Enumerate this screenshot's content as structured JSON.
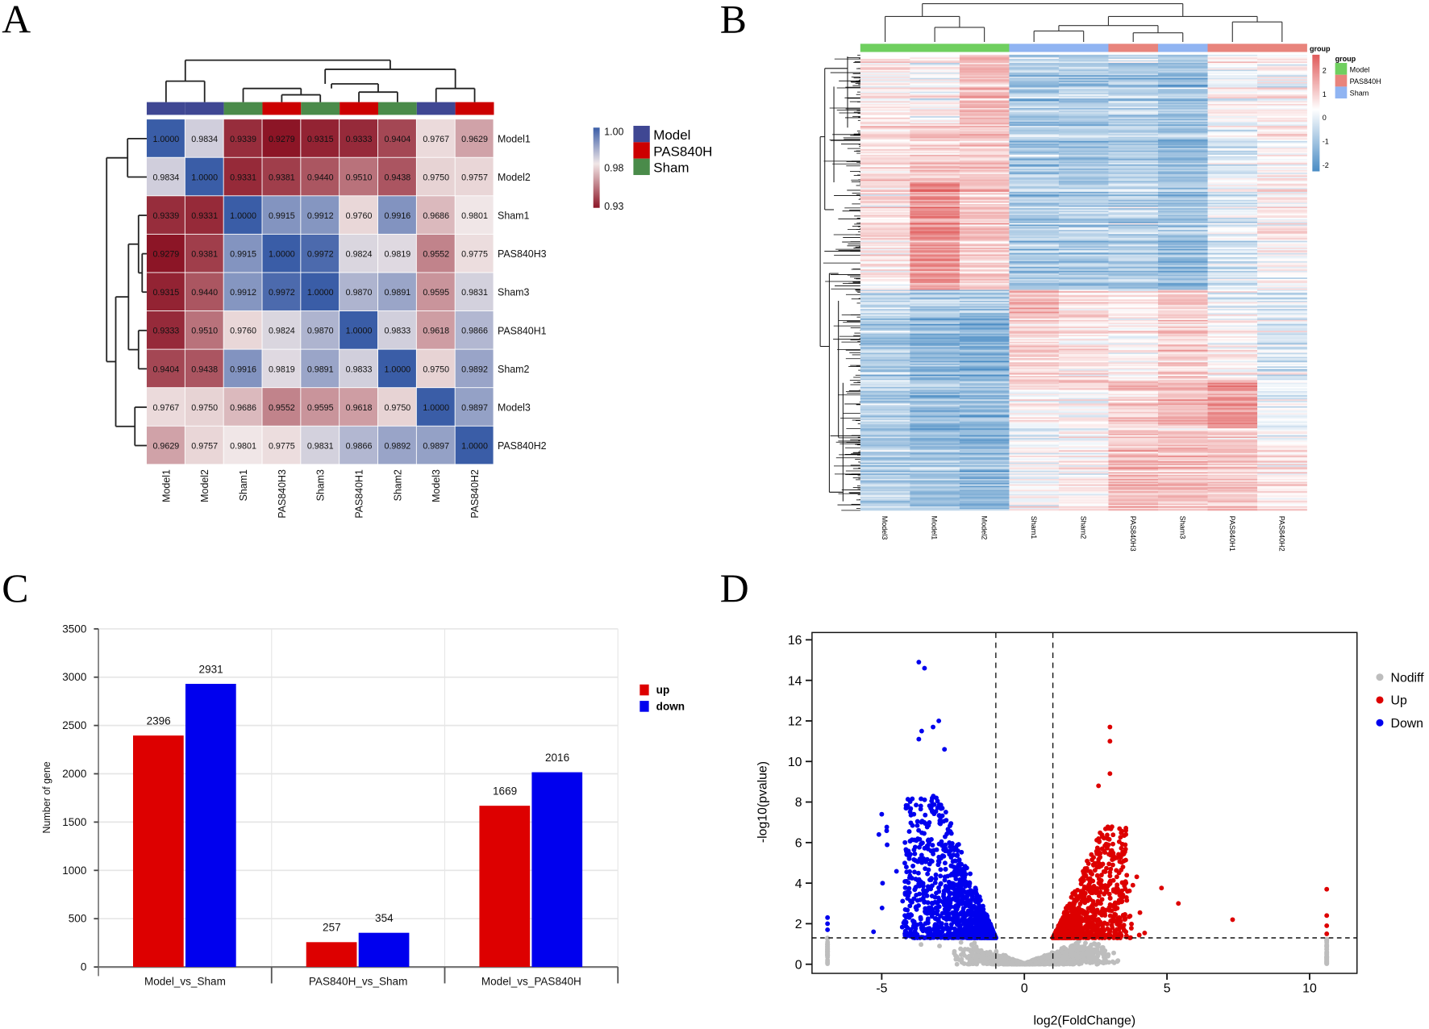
{
  "panels": {
    "a": "A",
    "b": "B",
    "c": "C",
    "d": "D"
  },
  "chart_data": [
    {
      "type": "heatmap",
      "id": "correlation",
      "samples": [
        "Model1",
        "Model2",
        "Sham1",
        "PAS840H3",
        "Sham3",
        "PAS840H1",
        "Sham2",
        "Model3",
        "PAS840H2"
      ],
      "sample_groups": [
        "Model",
        "Model",
        "Sham",
        "PAS840H",
        "Sham",
        "PAS840H",
        "Sham",
        "Model",
        "PAS840H"
      ],
      "values": [
        [
          "1.0000",
          "0.9834",
          "0.9339",
          "0.9279",
          "0.9315",
          "0.9333",
          "0.9404",
          "0.9767",
          "0.9629"
        ],
        [
          "0.9834",
          "1.0000",
          "0.9331",
          "0.9381",
          "0.9440",
          "0.9510",
          "0.9438",
          "0.9750",
          "0.9757"
        ],
        [
          "0.9339",
          "0.9331",
          "1.0000",
          "0.9915",
          "0.9912",
          "0.9760",
          "0.9916",
          "0.9686",
          "0.9801"
        ],
        [
          "0.9279",
          "0.9381",
          "0.9915",
          "1.0000",
          "0.9972",
          "0.9824",
          "0.9819",
          "0.9552",
          "0.9775"
        ],
        [
          "0.9315",
          "0.9440",
          "0.9912",
          "0.9972",
          "1.0000",
          "0.9870",
          "0.9891",
          "0.9595",
          "0.9831"
        ],
        [
          "0.9333",
          "0.9510",
          "0.9760",
          "0.9824",
          "0.9870",
          "1.0000",
          "0.9833",
          "0.9618",
          "0.9866"
        ],
        [
          "0.9404",
          "0.9438",
          "0.9916",
          "0.9819",
          "0.9891",
          "0.9833",
          "1.0000",
          "0.9750",
          "0.9892"
        ],
        [
          "0.9767",
          "0.9750",
          "0.9686",
          "0.9552",
          "0.9595",
          "0.9618",
          "0.9750",
          "1.0000",
          "0.9897"
        ],
        [
          "0.9629",
          "0.9757",
          "0.9801",
          "0.9775",
          "0.9831",
          "0.9866",
          "0.9892",
          "0.9897",
          "1.0000"
        ]
      ],
      "colorbar": {
        "ticks": [
          "1.00",
          "0.98",
          "0.93"
        ],
        "min": 0.93,
        "mid": 0.98,
        "max": 1.0,
        "colors": [
          "#8c1526",
          "#f1e7e7",
          "#3a5da7"
        ]
      },
      "legend": [
        {
          "label": "Model",
          "color": "#3f4793"
        },
        {
          "label": "PAS840H",
          "color": "#cc0000"
        },
        {
          "label": "Sham",
          "color": "#4a8b4a"
        }
      ]
    },
    {
      "type": "heatmap",
      "id": "expression-clustering",
      "samples": [
        "Model3",
        "Model1",
        "Model2",
        "Sham1",
        "Sham2",
        "PAS840H3",
        "Sham3",
        "PAS840H1",
        "PAS840H2"
      ],
      "sample_groups": [
        "Model",
        "Model",
        "Model",
        "Sham",
        "Sham",
        "PAS840H",
        "Sham",
        "PAS840H",
        "PAS840H"
      ],
      "row_block_gene_fraction": [
        0.15,
        0.13,
        0.236,
        0.054,
        0.15,
        0.1,
        0.18
      ],
      "row_block_mean_zscore": [
        [
          0.2,
          0.1,
          1.0,
          -1.0,
          -1.0,
          -0.9,
          -1.2,
          0.0,
          0.1
        ],
        [
          0.6,
          0.8,
          0.8,
          -1.0,
          -1.0,
          -0.9,
          -1.2,
          -0.3,
          0.2
        ],
        [
          0.4,
          1.6,
          0.8,
          -1.0,
          -1.0,
          -0.9,
          -1.2,
          -0.4,
          0.1
        ],
        [
          -0.8,
          -1.0,
          -1.0,
          1.0,
          0.6,
          0.3,
          0.7,
          -0.2,
          -0.5
        ],
        [
          -0.9,
          -1.3,
          -1.4,
          0.7,
          0.5,
          0.3,
          0.8,
          0.3,
          -0.3
        ],
        [
          -0.9,
          -1.2,
          -1.3,
          0.1,
          0.2,
          0.6,
          0.9,
          1.5,
          -0.2
        ],
        [
          -0.9,
          -1.1,
          -1.3,
          0.0,
          0.2,
          1.0,
          0.9,
          0.8,
          0.3
        ]
      ],
      "colorbar": {
        "title": "group",
        "ticks": [
          "2",
          "1",
          "0",
          "-1",
          "-2"
        ],
        "colors": [
          "#e05a5a",
          "#ffffff",
          "#4a8cc4"
        ]
      },
      "legend_title": "group",
      "legend": [
        {
          "label": "Model",
          "color": "#6fcf5f"
        },
        {
          "label": "PAS840H",
          "color": "#e8847c"
        },
        {
          "label": "Sham",
          "color": "#90b4f2"
        }
      ]
    },
    {
      "type": "bar",
      "id": "deg-counts",
      "categories": [
        "Model_vs_Sham",
        "PAS840H_vs_Sham",
        "Model_vs_PAS840H"
      ],
      "series": [
        {
          "name": "up",
          "color": "#dd0000",
          "values": [
            2396,
            257,
            1669
          ]
        },
        {
          "name": "down",
          "color": "#0000ee",
          "values": [
            2931,
            354,
            2016
          ]
        }
      ],
      "ylabel": "Number of gene",
      "xlabel": "",
      "ylim": [
        0,
        3500
      ],
      "yticks": [
        "0",
        "500",
        "1000",
        "1500",
        "2000",
        "2500",
        "3000",
        "3500"
      ],
      "grid": true,
      "legend_position": "right"
    },
    {
      "type": "scatter",
      "id": "volcano",
      "xlabel": "log2(FoldChange)",
      "ylabel": "-log10(pvalue)",
      "xlim": [
        -7.4,
        11.8
      ],
      "ylim": [
        -0.4,
        16.4
      ],
      "xticks": [
        "-5",
        "0",
        "5",
        "10"
      ],
      "yticks": [
        "0",
        "2",
        "4",
        "6",
        "8",
        "10",
        "12",
        "14",
        "16"
      ],
      "thresholds": {
        "log2fc": [
          -1,
          1
        ],
        "neg_log10_p": 1.3
      },
      "legend_position": "right",
      "series": [
        {
          "name": "Nodiff",
          "color": "#bdbdbd"
        },
        {
          "name": "Up",
          "color": "#dd0000"
        },
        {
          "name": "Down",
          "color": "#0000ee"
        }
      ],
      "notable_points": {
        "Down": [
          [
            -3.7,
            14.9
          ],
          [
            -3.5,
            14.6
          ],
          [
            -3.0,
            12.0
          ],
          [
            -3.2,
            11.7
          ],
          [
            -3.6,
            11.5
          ],
          [
            -3.7,
            11.1
          ],
          [
            -2.8,
            10.6
          ],
          [
            -6.9,
            2.3
          ],
          [
            -6.9,
            2.0
          ],
          [
            -6.9,
            1.7
          ],
          [
            -5.1,
            6.4
          ],
          [
            -5.0,
            7.4
          ]
        ],
        "Up": [
          [
            3.0,
            11.7
          ],
          [
            3.0,
            11.0
          ],
          [
            3.0,
            9.4
          ],
          [
            2.6,
            8.8
          ],
          [
            7.3,
            2.2
          ],
          [
            10.6,
            3.7
          ],
          [
            10.6,
            2.4
          ],
          [
            10.6,
            1.9
          ],
          [
            10.6,
            1.5
          ],
          [
            5.4,
            3.0
          ]
        ]
      }
    }
  ]
}
